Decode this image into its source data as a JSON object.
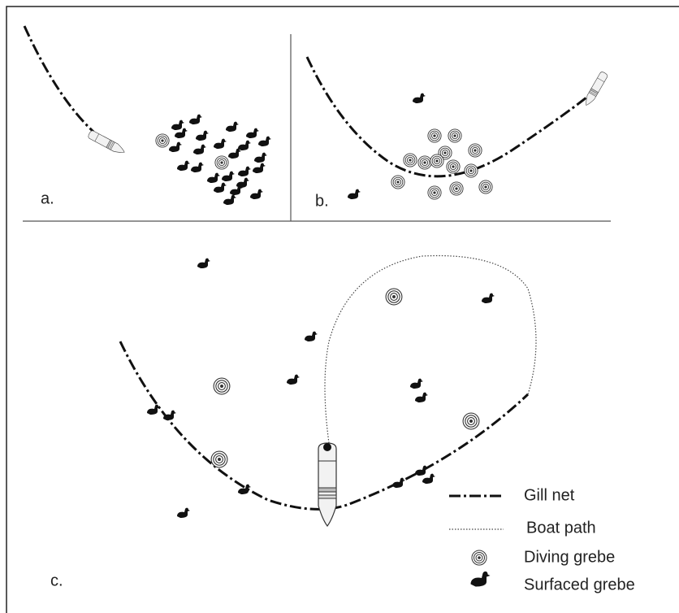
{
  "panels": [
    {
      "label": "a."
    },
    {
      "label": "b."
    },
    {
      "label": "c."
    }
  ],
  "legend": [
    {
      "label": "Gill net"
    },
    {
      "label": "Boat path"
    },
    {
      "label": "Diving grebe"
    },
    {
      "label": "Surfaced grebe"
    }
  ]
}
